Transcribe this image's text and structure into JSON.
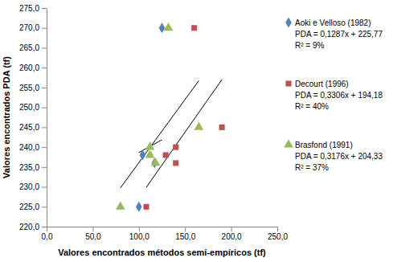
{
  "chart_data": {
    "type": "scatter",
    "x_label": "Valores encontrados métodos semi-empíricos (tf)",
    "y_label": "Valores encontrados PDA (tf)",
    "xlim": [
      0,
      250
    ],
    "ylim": [
      220,
      275
    ],
    "xticks": [
      {
        "value": 0,
        "label": "0,0"
      },
      {
        "value": 50,
        "label": "50,0"
      },
      {
        "value": 100,
        "label": "100,0"
      },
      {
        "value": 150,
        "label": "150,0"
      },
      {
        "value": 200,
        "label": "200,0"
      },
      {
        "value": 250,
        "label": "250,0"
      }
    ],
    "yticks": [
      {
        "value": 220,
        "label": "220,0"
      },
      {
        "value": 225,
        "label": "225,0"
      },
      {
        "value": 230,
        "label": "230,0"
      },
      {
        "value": 235,
        "label": "235,0"
      },
      {
        "value": 240,
        "label": "240,0"
      },
      {
        "value": 245,
        "label": "245,0"
      },
      {
        "value": 250,
        "label": "250,0"
      },
      {
        "value": 255,
        "label": "255,0"
      },
      {
        "value": 260,
        "label": "260,0"
      },
      {
        "value": 265,
        "label": "265,0"
      },
      {
        "value": 270,
        "label": "270,0"
      },
      {
        "value": 275,
        "label": "275,0"
      }
    ],
    "grid": false,
    "legend": "right",
    "series": [
      {
        "name": "Aoki e Velloso (1982)",
        "color": "#4f81bd",
        "marker": "diamond",
        "equation": "PDA = 0,1287x + 225,77",
        "r2": "R² = 9%",
        "trend": {
          "slope": 0.1287,
          "intercept": 225.77
        },
        "x": [
          125,
          104,
          117,
          100
        ],
        "values": [
          270,
          238,
          236,
          225
        ]
      },
      {
        "name": "Decourt (1996)",
        "color": "#c0504d",
        "marker": "square",
        "equation": "PDA = 0,3306x + 194,18",
        "r2": "R² = 40%",
        "trend": {
          "slope": 0.3306,
          "intercept": 194.18
        },
        "x": [
          160,
          129,
          140,
          140,
          190,
          108
        ],
        "values": [
          270,
          238,
          240,
          236,
          245,
          225
        ]
      },
      {
        "name": "Brasfond (1991)",
        "color": "#9bbb59",
        "marker": "triangle",
        "equation": "PDA = 0,3176x + 204,33",
        "r2": "R² = 37%",
        "trend": {
          "slope": 0.3176,
          "intercept": 204.33
        },
        "x": [
          132,
          112,
          112,
          118,
          165,
          80
        ],
        "values": [
          270,
          240,
          238,
          236,
          245,
          225
        ]
      }
    ]
  }
}
